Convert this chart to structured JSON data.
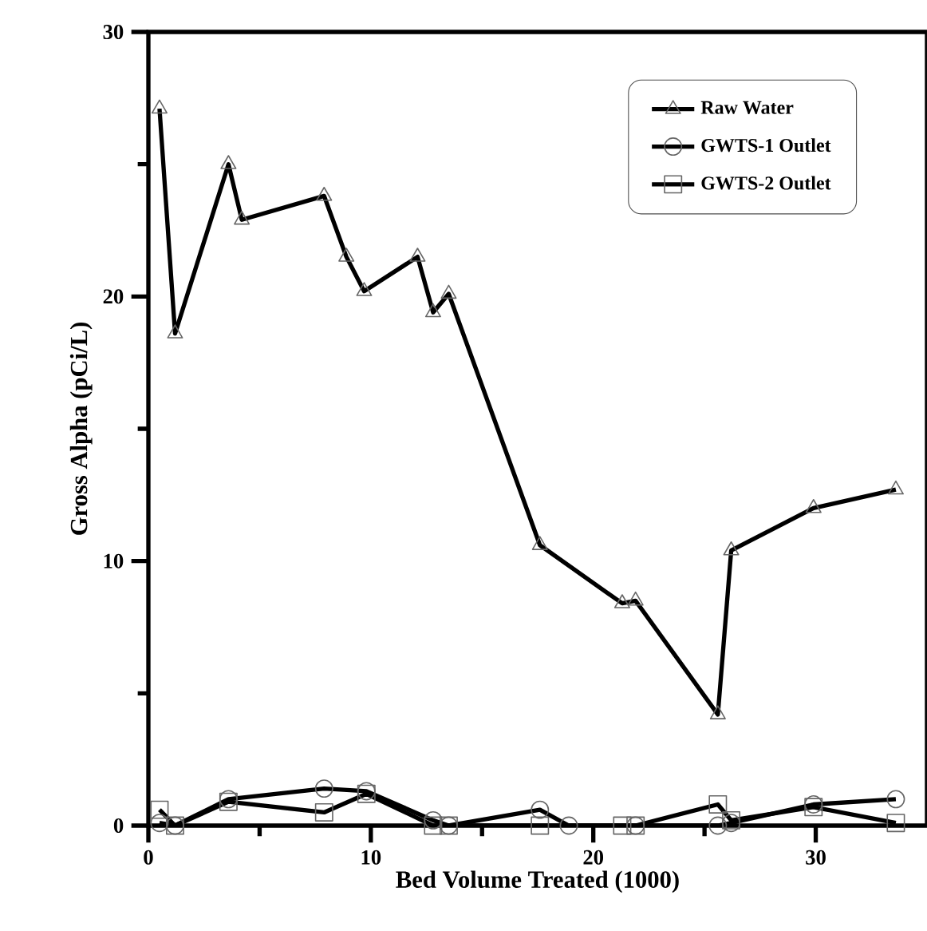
{
  "chart_data": {
    "type": "line",
    "xlabel": "Bed Volume Treated (1000)",
    "ylabel": "Gross Alpha (pCi/L)",
    "xlim": [
      0,
      35
    ],
    "ylim": [
      0,
      30
    ],
    "xticks": [
      0,
      {
        "value": 5,
        "label": null
      },
      10,
      {
        "value": 15,
        "label": null
      },
      20,
      {
        "value": 25,
        "label": null
      },
      30
    ],
    "yticks": [
      0,
      {
        "value": 5,
        "label": null
      },
      10,
      {
        "value": 15,
        "label": null
      },
      20,
      {
        "value": 25,
        "label": null
      },
      30
    ],
    "legend": "top right",
    "grid": false,
    "line_style": "solid",
    "series": [
      {
        "name": "Raw Water",
        "color": "#000000",
        "marker": "triangle",
        "x": [
          0.5,
          1.2,
          3.6,
          4.2,
          7.9,
          8.9,
          9.7,
          12.1,
          12.8,
          13.5,
          17.6,
          21.3,
          21.9,
          25.6,
          26.2,
          29.9,
          33.6
        ],
        "values": [
          27.1,
          18.6,
          25.0,
          22.9,
          23.8,
          21.5,
          20.2,
          21.5,
          19.4,
          20.1,
          10.6,
          8.4,
          8.5,
          4.2,
          10.4,
          12.0,
          12.7
        ]
      },
      {
        "name": "GWTS-1 Outlet",
        "color": "#000000",
        "marker": "circle",
        "x": [
          0.5,
          1.2,
          3.6,
          7.9,
          9.8,
          12.8,
          13.5,
          17.6,
          18.9,
          21.9,
          25.6,
          26.2,
          29.9,
          33.6
        ],
        "values": [
          0.1,
          0,
          1.0,
          1.4,
          1.3,
          0.2,
          0,
          0.6,
          0,
          0,
          0,
          0.1,
          0.8,
          1.0
        ]
      },
      {
        "name": "GWTS-2 Outlet",
        "color": "#000000",
        "marker": "square",
        "x": [
          0.5,
          1.2,
          3.6,
          7.9,
          9.8,
          12.8,
          13.5,
          17.6,
          21.3,
          21.9,
          25.6,
          26.2,
          29.9,
          33.6
        ],
        "values": [
          0.6,
          0,
          0.9,
          0.5,
          1.2,
          0,
          0,
          0,
          0,
          0,
          0.8,
          0.2,
          0.7,
          0.1
        ]
      }
    ]
  }
}
